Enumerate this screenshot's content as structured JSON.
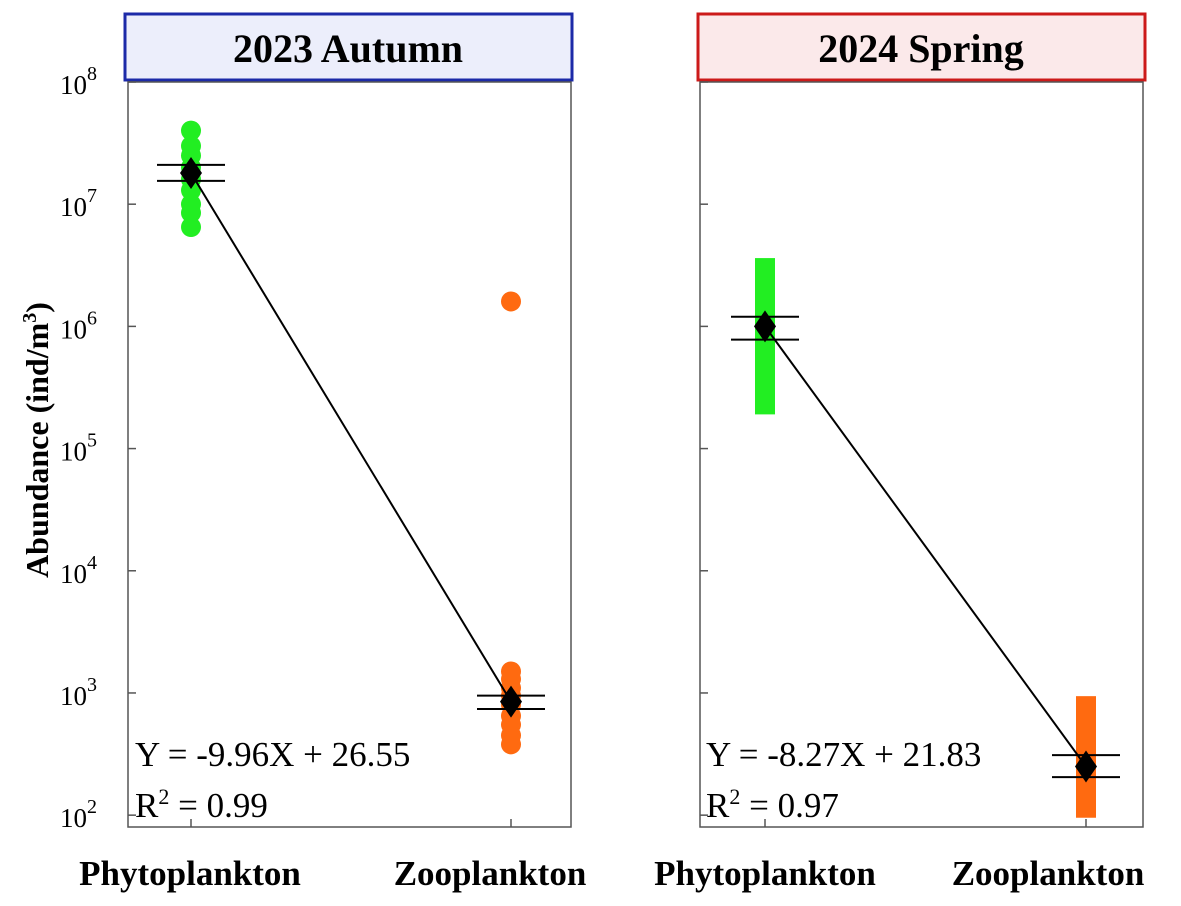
{
  "chart_data": [
    {
      "type": "scatter",
      "title": "2023 Autumn",
      "title_border_color": "#1c2aa8",
      "title_fill_color": "#eceefb",
      "ylabel": "Abundance (ind/m³)",
      "ylabel_main": "Abundance (ind/m",
      "ylabel_sup": "3",
      "ylabel_close": ")",
      "yscale": "log",
      "ylim": [
        80,
        100000000
      ],
      "y_ticks": [
        {
          "value": 100,
          "base": "10",
          "exp": "2"
        },
        {
          "value": 1000,
          "base": "10",
          "exp": "3"
        },
        {
          "value": 10000,
          "base": "10",
          "exp": "4"
        },
        {
          "value": 100000,
          "base": "10",
          "exp": "5"
        },
        {
          "value": 1000000,
          "base": "10",
          "exp": "6"
        },
        {
          "value": 10000000,
          "base": "10",
          "exp": "7"
        },
        {
          "value": 100000000,
          "base": "10",
          "exp": "8"
        }
      ],
      "categories": [
        "Phytoplankton",
        "Zooplankton"
      ],
      "marker": "circle",
      "series": [
        {
          "category": "Phytoplankton",
          "color": "#22ee22",
          "values": [
            40000000,
            30000000,
            25000000,
            20000000,
            16000000,
            13000000,
            10000000,
            8500000,
            6500000
          ]
        },
        {
          "category": "Zooplankton",
          "color": "#ff6a10",
          "values": [
            1600000,
            1500,
            1300,
            1100,
            950,
            800,
            650,
            550,
            450,
            380
          ]
        }
      ],
      "means": [
        {
          "category": "Phytoplankton",
          "value": 18000000,
          "upper": 21000000,
          "lower": 15500000
        },
        {
          "category": "Zooplankton",
          "value": 850,
          "upper": 950,
          "lower": 740
        }
      ],
      "equation": "Y = -9.96X + 26.55",
      "r2_label": "R",
      "r2_sup": "2",
      "r2_value": " = 0.99"
    },
    {
      "type": "scatter",
      "title": "2024 Spring",
      "title_border_color": "#cc1a1a",
      "title_fill_color": "#fbe9ea",
      "yscale": "log",
      "ylim": [
        80,
        100000000
      ],
      "categories": [
        "Phytoplankton",
        "Zooplankton"
      ],
      "marker": "square",
      "series": [
        {
          "category": "Phytoplankton",
          "color": "#22ee22",
          "values": [
            3000000,
            2200000,
            1600000,
            1200000,
            900000,
            700000,
            500000,
            380000,
            280000,
            230000
          ]
        },
        {
          "category": "Zooplankton",
          "color": "#ff6a10",
          "values": [
            780,
            550,
            400,
            300,
            230,
            180,
            140,
            115,
            40
          ]
        }
      ],
      "means": [
        {
          "category": "Phytoplankton",
          "value": 1000000,
          "upper": 1200000,
          "lower": 780000
        },
        {
          "category": "Zooplankton",
          "value": 250,
          "upper": 310,
          "lower": 205
        }
      ],
      "equation": "Y = -8.27X + 21.83",
      "r2_label": "R",
      "r2_sup": "2",
      "r2_value": " = 0.97"
    }
  ]
}
